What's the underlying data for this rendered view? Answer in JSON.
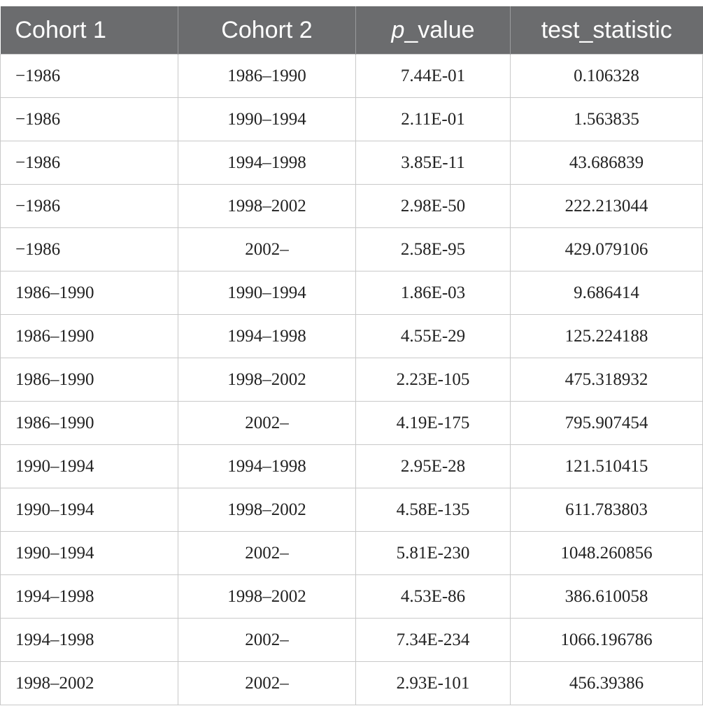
{
  "table": {
    "headers": {
      "cohort1": "Cohort 1",
      "cohort2": "Cohort 2",
      "p_prefix": "p",
      "p_suffix": "_value",
      "test_statistic": "test_statistic"
    },
    "rows": [
      {
        "cohort1": "−1986",
        "cohort2": "1986–1990",
        "p_value": "7.44E-01",
        "test_statistic": "0.106328"
      },
      {
        "cohort1": "−1986",
        "cohort2": "1990–1994",
        "p_value": "2.11E-01",
        "test_statistic": "1.563835"
      },
      {
        "cohort1": "−1986",
        "cohort2": "1994–1998",
        "p_value": "3.85E-11",
        "test_statistic": "43.686839"
      },
      {
        "cohort1": "−1986",
        "cohort2": "1998–2002",
        "p_value": "2.98E-50",
        "test_statistic": "222.213044"
      },
      {
        "cohort1": "−1986",
        "cohort2": "2002–",
        "p_value": "2.58E-95",
        "test_statistic": "429.079106"
      },
      {
        "cohort1": "1986–1990",
        "cohort2": "1990–1994",
        "p_value": "1.86E-03",
        "test_statistic": "9.686414"
      },
      {
        "cohort1": "1986–1990",
        "cohort2": "1994–1998",
        "p_value": "4.55E-29",
        "test_statistic": "125.224188"
      },
      {
        "cohort1": "1986–1990",
        "cohort2": "1998–2002",
        "p_value": "2.23E-105",
        "test_statistic": "475.318932"
      },
      {
        "cohort1": "1986–1990",
        "cohort2": "2002–",
        "p_value": "4.19E-175",
        "test_statistic": "795.907454"
      },
      {
        "cohort1": "1990–1994",
        "cohort2": "1994–1998",
        "p_value": "2.95E-28",
        "test_statistic": "121.510415"
      },
      {
        "cohort1": "1990–1994",
        "cohort2": "1998–2002",
        "p_value": "4.58E-135",
        "test_statistic": "611.783803"
      },
      {
        "cohort1": "1990–1994",
        "cohort2": "2002–",
        "p_value": "5.81E-230",
        "test_statistic": "1048.260856"
      },
      {
        "cohort1": "1994–1998",
        "cohort2": "1998–2002",
        "p_value": "4.53E-86",
        "test_statistic": "386.610058"
      },
      {
        "cohort1": "1994–1998",
        "cohort2": "2002–",
        "p_value": "7.34E-234",
        "test_statistic": "1066.196786"
      },
      {
        "cohort1": "1998–2002",
        "cohort2": "2002–",
        "p_value": "2.93E-101",
        "test_statistic": "456.39386"
      }
    ]
  }
}
